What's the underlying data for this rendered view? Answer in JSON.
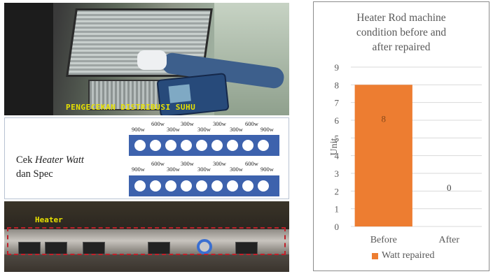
{
  "left": {
    "photo_caption": "PENGECEKAN DISTRIBUSI SUHU",
    "check_label_prefix": "Cek ",
    "check_label_italic": "Heater Watt",
    "check_label_line2": "dan Spec",
    "watt_labels_top": [
      "900w",
      "600w",
      "300w",
      "300w",
      "300w",
      "300w",
      "300w",
      "600w",
      "900w"
    ],
    "watt_labels_bottom": [
      "900w",
      "600w",
      "300w",
      "300w",
      "300w",
      "300w",
      "300w",
      "600w",
      "900w"
    ],
    "heater_label": "Heater"
  },
  "chart_data": {
    "type": "bar",
    "title_lines": [
      "Heater Rod machine",
      "condition before and",
      "after repaired"
    ],
    "categories": [
      "Before",
      "After"
    ],
    "series": [
      {
        "name": "Watt repaired",
        "values": [
          8,
          0
        ],
        "color": "#ed7d31"
      }
    ],
    "data_labels": [
      "8",
      "0"
    ],
    "ylabel": "Unit",
    "ylim": [
      0,
      9
    ],
    "yticks": [
      "0",
      "1",
      "2",
      "3",
      "4",
      "5",
      "6",
      "7",
      "8",
      "9"
    ],
    "grid": true,
    "legend_position": "bottom"
  }
}
